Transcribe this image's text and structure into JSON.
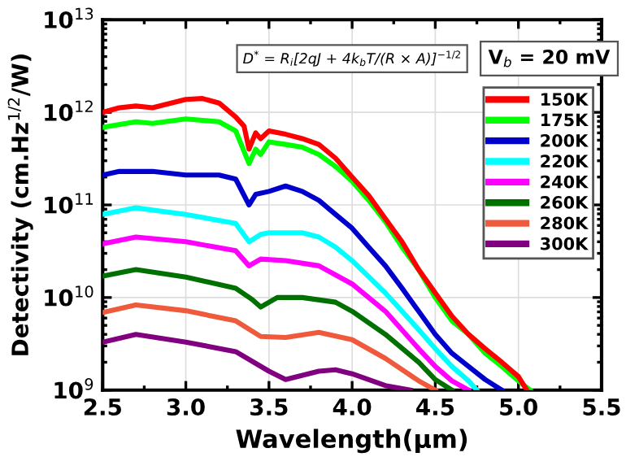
{
  "chart_data": {
    "type": "line",
    "xlabel": "Wavelength(μm)",
    "ylabel": "Detectivity (cm.Hz$^{1/2}$/W)",
    "xlim": [
      2.5,
      5.5
    ],
    "xticks": [
      {
        "value": 2.5,
        "label": "2.5"
      },
      {
        "value": 3.0,
        "label": "3.0"
      },
      {
        "value": 3.5,
        "label": "3.5"
      },
      {
        "value": 4.0,
        "label": "4.0"
      },
      {
        "value": 4.5,
        "label": "4.5"
      },
      {
        "value": 5.0,
        "label": "5.0"
      },
      {
        "value": 5.5,
        "label": "5.5"
      }
    ],
    "ylim": [
      1000000000.0,
      10000000000000.0
    ],
    "yticks": [
      {
        "value": 1000000000.0,
        "label": "10$^{9}$"
      },
      {
        "value": 10000000000.0,
        "label": "10$^{10}$"
      },
      {
        "value": 100000000000.0,
        "label": "10$^{11}$"
      },
      {
        "value": 1000000000000.0,
        "label": "10$^{12}$"
      },
      {
        "value": 10000000000000.0,
        "label": "10$^{13}$"
      }
    ],
    "log": "y",
    "grid": true,
    "legend": "top right",
    "marker": "none",
    "line_style": "solid",
    "annotations": [
      "D$^{*}$ = R$_{i}$[2qJ + 4k$_{b}$T/(R × A)]$^{−1/2}$",
      "V$_{b}$ = 20 mV"
    ],
    "series": [
      {
        "name": "150K",
        "color": "#ff0000",
        "x": [
          2.5,
          2.6,
          2.7,
          2.8,
          3.0,
          3.1,
          3.2,
          3.3,
          3.35,
          3.38,
          3.42,
          3.45,
          3.5,
          3.6,
          3.7,
          3.8,
          3.9,
          4.0,
          4.1,
          4.2,
          4.3,
          4.4,
          4.5,
          4.6,
          4.7,
          4.8,
          4.9,
          5.0,
          5.05
        ],
        "values": [
          1000000000000.0,
          1120000000000.0,
          1170000000000.0,
          1120000000000.0,
          1380000000000.0,
          1410000000000.0,
          1260000000000.0,
          890000000000.0,
          710000000000.0,
          400000000000.0,
          600000000000.0,
          520000000000.0,
          630000000000.0,
          580000000000.0,
          520000000000.0,
          450000000000.0,
          320000000000.0,
          200000000000.0,
          126000000000.0,
          71000000000.0,
          40000000000.0,
          20000000000.0,
          11200000000.0,
          6300000000.0,
          4000000000.0,
          2800000000.0,
          2000000000.0,
          1400000000.0,
          1000000000.0
        ]
      },
      {
        "name": "175K",
        "color": "#00ff00",
        "x": [
          2.5,
          2.7,
          2.8,
          3.0,
          3.2,
          3.3,
          3.38,
          3.42,
          3.45,
          3.5,
          3.6,
          3.7,
          3.8,
          3.9,
          4.0,
          4.1,
          4.2,
          4.3,
          4.4,
          4.5,
          4.6,
          4.7,
          4.8,
          4.9,
          5.0,
          5.07
        ],
        "values": [
          690000000000.0,
          790000000000.0,
          760000000000.0,
          850000000000.0,
          790000000000.0,
          630000000000.0,
          280000000000.0,
          400000000000.0,
          350000000000.0,
          480000000000.0,
          450000000000.0,
          420000000000.0,
          350000000000.0,
          260000000000.0,
          180000000000.0,
          112000000000.0,
          66000000000.0,
          35000000000.0,
          20000000000.0,
          10000000000.0,
          5600000000.0,
          4000000000.0,
          2500000000.0,
          1800000000.0,
          1260000000.0,
          1000000000.0
        ]
      },
      {
        "name": "200K",
        "color": "#0000cd",
        "x": [
          2.5,
          2.6,
          2.8,
          3.0,
          3.2,
          3.3,
          3.38,
          3.42,
          3.5,
          3.6,
          3.7,
          3.8,
          3.9,
          4.0,
          4.1,
          4.2,
          4.3,
          4.4,
          4.5,
          4.6,
          4.7,
          4.8,
          4.9
        ],
        "values": [
          210000000000.0,
          230000000000.0,
          230000000000.0,
          210000000000.0,
          210000000000.0,
          190000000000.0,
          100000000000.0,
          130000000000.0,
          140000000000.0,
          160000000000.0,
          140000000000.0,
          112000000000.0,
          79000000000.0,
          56000000000.0,
          35000000000.0,
          22000000000.0,
          12600000000.0,
          7100000000.0,
          4000000000.0,
          2500000000.0,
          1800000000.0,
          1300000000.0,
          1000000000.0
        ]
      },
      {
        "name": "220K",
        "color": "#00ffff",
        "x": [
          2.5,
          2.7,
          3.0,
          3.3,
          3.38,
          3.45,
          3.5,
          3.7,
          3.8,
          3.9,
          4.0,
          4.2,
          4.4,
          4.5,
          4.6,
          4.7,
          4.75
        ],
        "values": [
          79000000000.0,
          93000000000.0,
          79000000000.0,
          63000000000.0,
          40000000000.0,
          48000000000.0,
          50000000000.0,
          50000000000.0,
          45000000000.0,
          35000000000.0,
          25000000000.0,
          11200000000.0,
          4500000000.0,
          2800000000.0,
          1800000000.0,
          1260000000.0,
          1000000000.0
        ]
      },
      {
        "name": "240K",
        "color": "#ff00ff",
        "x": [
          2.5,
          2.7,
          3.0,
          3.3,
          3.38,
          3.45,
          3.6,
          3.8,
          4.0,
          4.2,
          4.4,
          4.5,
          4.6,
          4.7
        ],
        "values": [
          38000000000.0,
          45000000000.0,
          40000000000.0,
          32000000000.0,
          22000000000.0,
          26000000000.0,
          25000000000.0,
          22000000000.0,
          14000000000.0,
          7100000000.0,
          2800000000.0,
          1800000000.0,
          1260000000.0,
          1000000000.0
        ]
      },
      {
        "name": "260K",
        "color": "#007000",
        "x": [
          2.5,
          2.7,
          3.0,
          3.3,
          3.4,
          3.45,
          3.55,
          3.7,
          3.9,
          4.0,
          4.2,
          4.4,
          4.5,
          4.6
        ],
        "values": [
          17000000000.0,
          20000000000.0,
          16600000000.0,
          12600000000.0,
          9500000000.0,
          7900000000.0,
          10000000000.0,
          10000000000.0,
          8900000000.0,
          7100000000.0,
          4000000000.0,
          2000000000.0,
          1300000000.0,
          1000000000.0
        ]
      },
      {
        "name": "280K",
        "color": "#f05a3c",
        "x": [
          2.5,
          2.7,
          3.0,
          3.3,
          3.45,
          3.6,
          3.8,
          4.0,
          4.2,
          4.4,
          4.5
        ],
        "values": [
          6900000000.0,
          8300000000.0,
          7200000000.0,
          5600000000.0,
          3800000000.0,
          3700000000.0,
          4200000000.0,
          3500000000.0,
          2200000000.0,
          1260000000.0,
          1000000000.0
        ]
      },
      {
        "name": "300K",
        "color": "#800080",
        "x": [
          2.5,
          2.7,
          3.0,
          3.3,
          3.5,
          3.6,
          3.8,
          3.9,
          4.0,
          4.2,
          4.35
        ],
        "values": [
          3300000000.0,
          4000000000.0,
          3300000000.0,
          2600000000.0,
          1600000000.0,
          1300000000.0,
          1600000000.0,
          1660000000.0,
          1500000000.0,
          1120000000.0,
          1000000000.0
        ]
      }
    ]
  }
}
